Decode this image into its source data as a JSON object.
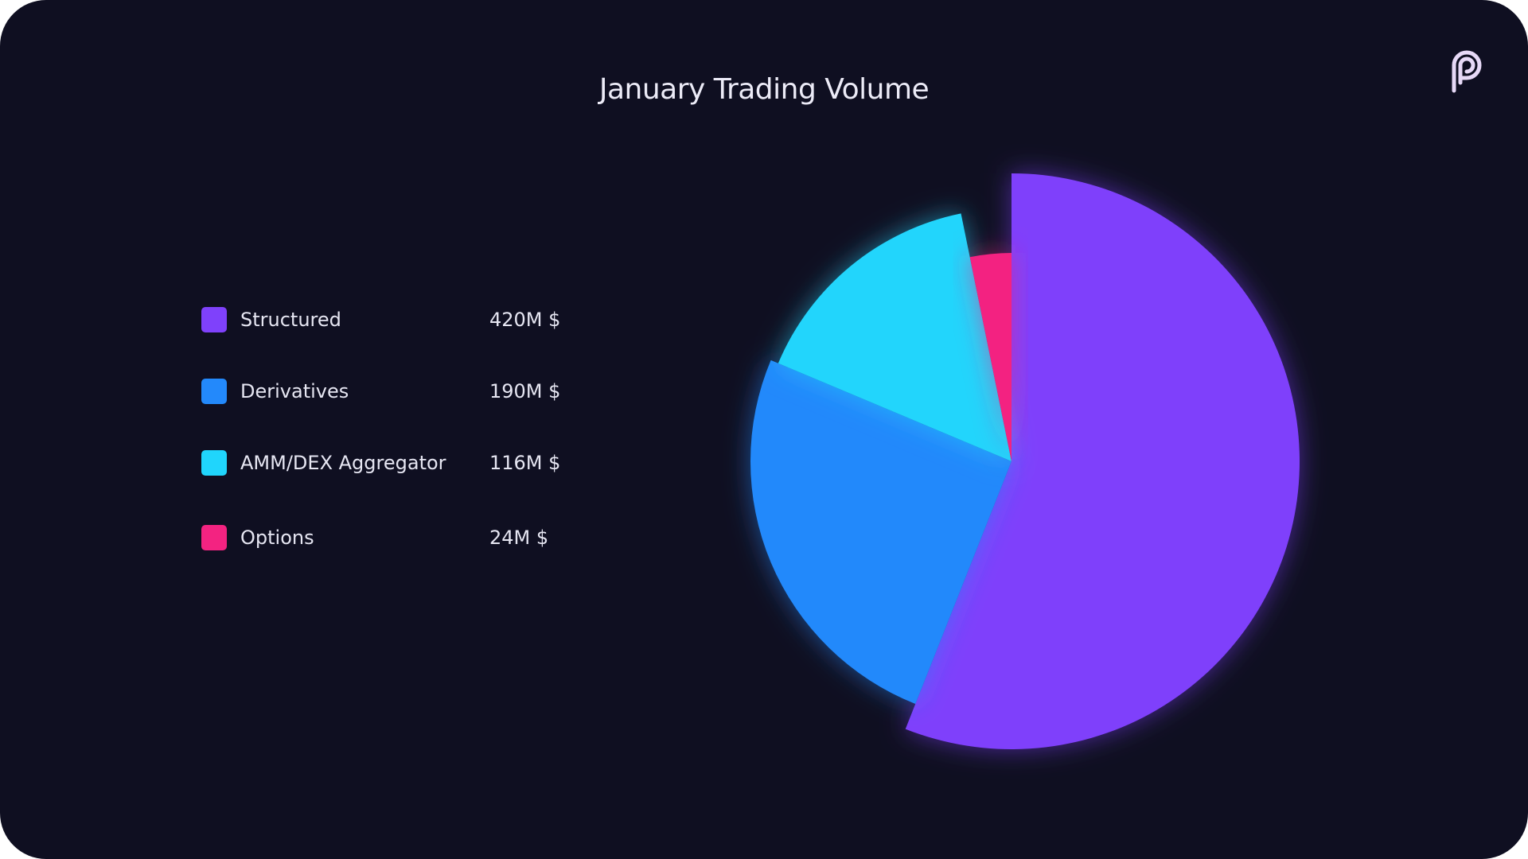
{
  "chart_data": {
    "type": "pie",
    "title": "January Trading Volume",
    "unit": "M $",
    "legend_position": "left",
    "series": [
      {
        "name": "Structured",
        "value": 420,
        "display": "420M $",
        "color": "#7f41fb"
      },
      {
        "name": "Derivatives",
        "value": 190,
        "display": "190M $",
        "color": "#2389fb"
      },
      {
        "name": "AMM/DEX Aggregator",
        "value": 116,
        "display": "116M $",
        "color": "#20d5fc"
      },
      {
        "name": "Options",
        "value": 24,
        "display": "24M $",
        "color": "#f32381"
      }
    ]
  },
  "logo": {
    "icon": "brand-p-icon",
    "color": "#e7d9f7"
  }
}
